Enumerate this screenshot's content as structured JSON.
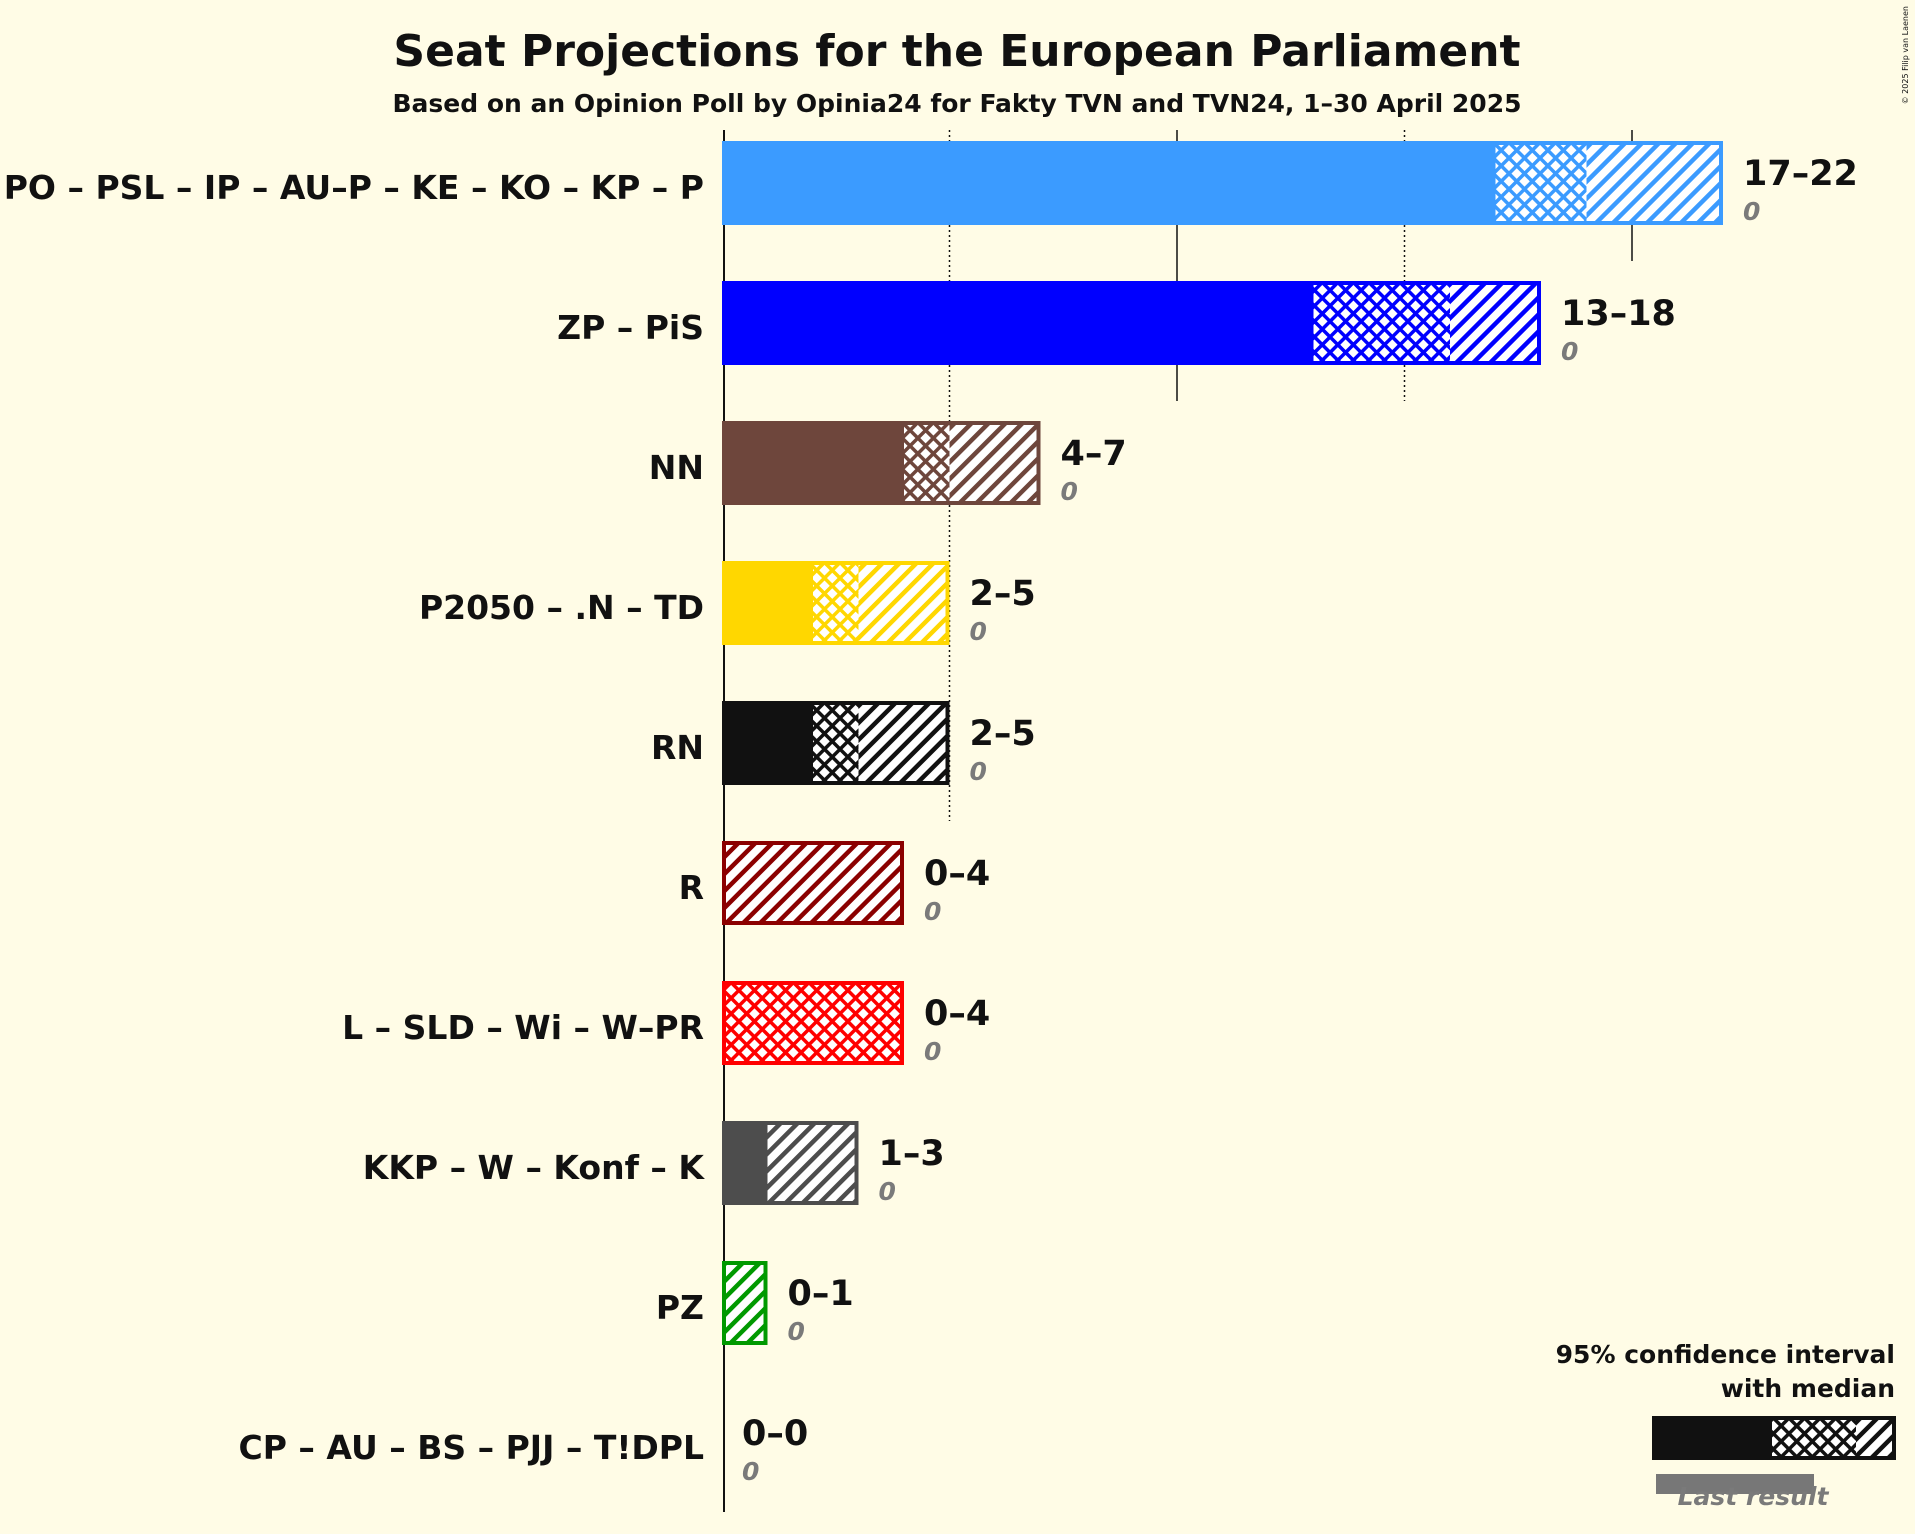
{
  "chart_data": {
    "type": "bar",
    "title": "Seat Projections for the European Parliament",
    "subtitle": "Based on an Opinion Poll by Opinia24 for Fakty TVN and TVN24, 1–30 April 2025",
    "copyright": "© 2025 Filip van Laenen",
    "xlim": [
      0,
      22
    ],
    "orientation": "horizontal",
    "categories": [
      "PO – PSL – IP – AU–P – KE – KO – KP – P",
      "ZP – PiS",
      "NN",
      "P2050 – .N – TD",
      "RN",
      "R",
      "L – SLD – Wi – W–PR",
      "KKP – W – Konf – K",
      "PZ",
      "CP – AU – BS – PJJ – T!DPL"
    ],
    "series": [
      {
        "name": "95% confidence interval with median",
        "lower": [
          17,
          13,
          4,
          2,
          2,
          0,
          0,
          1,
          0,
          0
        ],
        "median": [
          19,
          16,
          5,
          3,
          3,
          0,
          4,
          1,
          0,
          0
        ],
        "upper": [
          22,
          18,
          7,
          5,
          5,
          4,
          4,
          3,
          1,
          0
        ]
      },
      {
        "name": "Last result",
        "values": [
          0,
          0,
          0,
          0,
          0,
          0,
          0,
          0,
          0,
          0
        ]
      }
    ],
    "range_labels": [
      "17–22",
      "13–18",
      "4–7",
      "2–5",
      "2–5",
      "0–4",
      "0–4",
      "1–3",
      "0–1",
      "0–0"
    ],
    "last_labels": [
      "0",
      "0",
      "0",
      "0",
      "0",
      "0",
      "0",
      "0",
      "0",
      "0"
    ],
    "colors": [
      "#3b9bff",
      "#0000ff",
      "#6e463c",
      "#ffd700",
      "#111111",
      "#8b0000",
      "#ff0000",
      "#4d4d4d",
      "#009900",
      "#555555"
    ],
    "gridlines": {
      "solid": [
        10,
        20
      ],
      "dotted": [
        5,
        15
      ]
    },
    "legend": {
      "line1": "95% confidence interval",
      "line2": "with median",
      "last": "Last result",
      "position": "bottom-right"
    }
  }
}
